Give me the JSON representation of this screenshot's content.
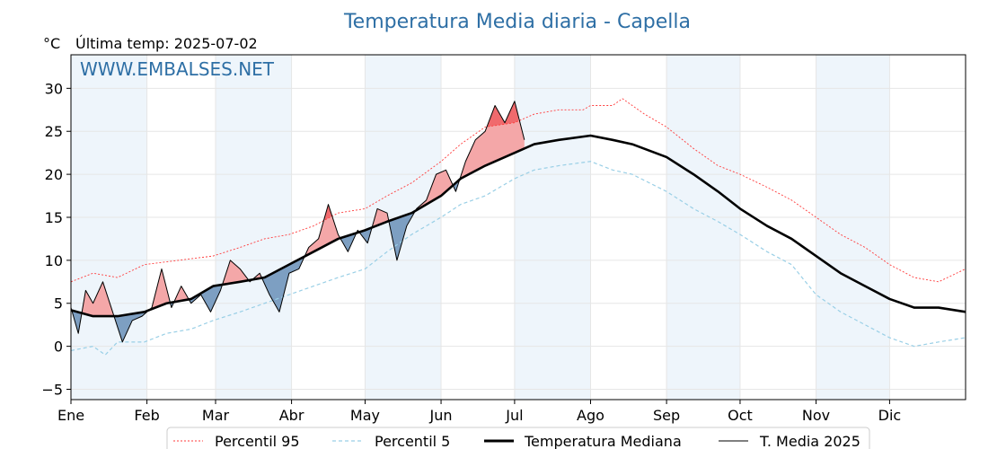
{
  "title": "Temperatura Media diaria - Capella",
  "unit": "°C",
  "last_temp": "Última temp: 2025-07-02",
  "watermark": "WWW.EMBALSES.NET",
  "colors": {
    "p95": "#ff3b3b",
    "p5": "#99cfe6",
    "median": "#000000",
    "mean2025": "#000000",
    "above_fill": "#f4a7a8",
    "above_fill_strong": "#f06a6d",
    "below_fill": "#7d9fc2",
    "band": "#eef5fb",
    "title": "#2e6fa5"
  },
  "legend": {
    "p95": "Percentil 95",
    "p5": "Percentil 5",
    "median": "Temperatura Mediana",
    "mean2025": "T. Media 2025"
  },
  "chart_data": {
    "type": "line",
    "title": "Temperatura Media diaria - Capella",
    "ylabel": "°C",
    "ylim": [
      -6.2,
      33.9
    ],
    "yticks": [
      -5,
      0,
      5,
      10,
      15,
      20,
      25,
      30
    ],
    "xlim": [
      1,
      366
    ],
    "x_axis": "day of year",
    "month_ticks": [
      {
        "label": "Ene",
        "day": 1
      },
      {
        "label": "Feb",
        "day": 32
      },
      {
        "label": "Mar",
        "day": 60
      },
      {
        "label": "Abr",
        "day": 91
      },
      {
        "label": "May",
        "day": 121
      },
      {
        "label": "Jun",
        "day": 152
      },
      {
        "label": "Jul",
        "day": 182
      },
      {
        "label": "Ago",
        "day": 213
      },
      {
        "label": "Sep",
        "day": 244
      },
      {
        "label": "Oct",
        "day": 274
      },
      {
        "label": "Nov",
        "day": 305
      },
      {
        "label": "Dic",
        "day": 335
      }
    ],
    "grid": true,
    "legend_position": "bottom",
    "series": [
      {
        "name": "Percentil 95",
        "style": "dotted",
        "points": [
          [
            1,
            7.5
          ],
          [
            10,
            8.5
          ],
          [
            20,
            8.0
          ],
          [
            31,
            9.5
          ],
          [
            45,
            10.0
          ],
          [
            59,
            10.5
          ],
          [
            70,
            11.5
          ],
          [
            80,
            12.5
          ],
          [
            90,
            13.0
          ],
          [
            100,
            14.0
          ],
          [
            110,
            15.5
          ],
          [
            121,
            16.0
          ],
          [
            130,
            17.5
          ],
          [
            140,
            19.0
          ],
          [
            152,
            21.5
          ],
          [
            160,
            23.5
          ],
          [
            170,
            25.5
          ],
          [
            182,
            26.0
          ],
          [
            190,
            27.0
          ],
          [
            200,
            27.5
          ],
          [
            210,
            27.5
          ],
          [
            213,
            28.0
          ],
          [
            222,
            28.0
          ],
          [
            226,
            28.8
          ],
          [
            235,
            27.0
          ],
          [
            244,
            25.5
          ],
          [
            255,
            23.0
          ],
          [
            265,
            21.0
          ],
          [
            274,
            20.0
          ],
          [
            285,
            18.5
          ],
          [
            295,
            17.0
          ],
          [
            305,
            15.0
          ],
          [
            315,
            13.0
          ],
          [
            325,
            11.5
          ],
          [
            335,
            9.5
          ],
          [
            345,
            8.0
          ],
          [
            355,
            7.5
          ],
          [
            366,
            9.0
          ]
        ]
      },
      {
        "name": "Percentil 5",
        "style": "dashed",
        "points": [
          [
            1,
            -0.5
          ],
          [
            10,
            0.0
          ],
          [
            15,
            -1.0
          ],
          [
            20,
            0.5
          ],
          [
            31,
            0.5
          ],
          [
            40,
            1.5
          ],
          [
            50,
            2.0
          ],
          [
            59,
            3.0
          ],
          [
            70,
            4.0
          ],
          [
            80,
            5.0
          ],
          [
            90,
            6.0
          ],
          [
            100,
            7.0
          ],
          [
            110,
            8.0
          ],
          [
            121,
            9.0
          ],
          [
            130,
            11.0
          ],
          [
            140,
            13.0
          ],
          [
            152,
            15.0
          ],
          [
            160,
            16.5
          ],
          [
            170,
            17.5
          ],
          [
            182,
            19.5
          ],
          [
            190,
            20.5
          ],
          [
            200,
            21.0
          ],
          [
            213,
            21.5
          ],
          [
            222,
            20.5
          ],
          [
            230,
            20.0
          ],
          [
            244,
            18.0
          ],
          [
            255,
            16.0
          ],
          [
            265,
            14.5
          ],
          [
            274,
            13.0
          ],
          [
            285,
            11.0
          ],
          [
            295,
            9.5
          ],
          [
            305,
            6.0
          ],
          [
            315,
            4.0
          ],
          [
            325,
            2.5
          ],
          [
            335,
            1.0
          ],
          [
            345,
            0.0
          ],
          [
            355,
            0.5
          ],
          [
            366,
            1.0
          ]
        ]
      },
      {
        "name": "Temperatura Mediana",
        "style": "solid-thick",
        "points": [
          [
            1,
            4.2
          ],
          [
            10,
            3.5
          ],
          [
            20,
            3.5
          ],
          [
            31,
            4.0
          ],
          [
            40,
            5.0
          ],
          [
            50,
            5.5
          ],
          [
            59,
            7.0
          ],
          [
            70,
            7.5
          ],
          [
            80,
            8.0
          ],
          [
            90,
            9.5
          ],
          [
            100,
            11.0
          ],
          [
            110,
            12.5
          ],
          [
            121,
            13.5
          ],
          [
            130,
            14.5
          ],
          [
            140,
            15.5
          ],
          [
            152,
            17.5
          ],
          [
            160,
            19.5
          ],
          [
            170,
            21.0
          ],
          [
            182,
            22.5
          ],
          [
            190,
            23.5
          ],
          [
            200,
            24.0
          ],
          [
            213,
            24.5
          ],
          [
            222,
            24.0
          ],
          [
            230,
            23.5
          ],
          [
            244,
            22.0
          ],
          [
            255,
            20.0
          ],
          [
            265,
            18.0
          ],
          [
            274,
            16.0
          ],
          [
            285,
            14.0
          ],
          [
            295,
            12.5
          ],
          [
            305,
            10.5
          ],
          [
            315,
            8.5
          ],
          [
            325,
            7.0
          ],
          [
            335,
            5.5
          ],
          [
            345,
            4.5
          ],
          [
            355,
            4.5
          ],
          [
            366,
            4.0
          ]
        ]
      },
      {
        "name": "T. Media 2025",
        "style": "solid-thin",
        "points": [
          [
            1,
            4.5
          ],
          [
            4,
            1.5
          ],
          [
            7,
            6.5
          ],
          [
            10,
            5.0
          ],
          [
            14,
            7.5
          ],
          [
            18,
            4.0
          ],
          [
            22,
            0.5
          ],
          [
            26,
            3.0
          ],
          [
            30,
            3.5
          ],
          [
            34,
            4.5
          ],
          [
            38,
            9.0
          ],
          [
            42,
            4.5
          ],
          [
            46,
            7.0
          ],
          [
            50,
            5.0
          ],
          [
            54,
            6.0
          ],
          [
            58,
            4.0
          ],
          [
            62,
            6.5
          ],
          [
            66,
            10.0
          ],
          [
            70,
            9.0
          ],
          [
            74,
            7.5
          ],
          [
            78,
            8.5
          ],
          [
            82,
            6.0
          ],
          [
            86,
            4.0
          ],
          [
            90,
            8.5
          ],
          [
            94,
            9.0
          ],
          [
            98,
            11.5
          ],
          [
            102,
            12.5
          ],
          [
            106,
            16.5
          ],
          [
            110,
            13.0
          ],
          [
            114,
            11.0
          ],
          [
            118,
            13.5
          ],
          [
            122,
            12.0
          ],
          [
            126,
            16.0
          ],
          [
            130,
            15.5
          ],
          [
            134,
            10.0
          ],
          [
            138,
            14.0
          ],
          [
            142,
            16.0
          ],
          [
            146,
            17.0
          ],
          [
            150,
            20.0
          ],
          [
            154,
            20.5
          ],
          [
            158,
            18.0
          ],
          [
            162,
            21.5
          ],
          [
            166,
            24.0
          ],
          [
            170,
            25.0
          ],
          [
            174,
            28.0
          ],
          [
            178,
            26.0
          ],
          [
            182,
            28.5
          ],
          [
            186,
            24.0
          ]
        ]
      }
    ]
  }
}
